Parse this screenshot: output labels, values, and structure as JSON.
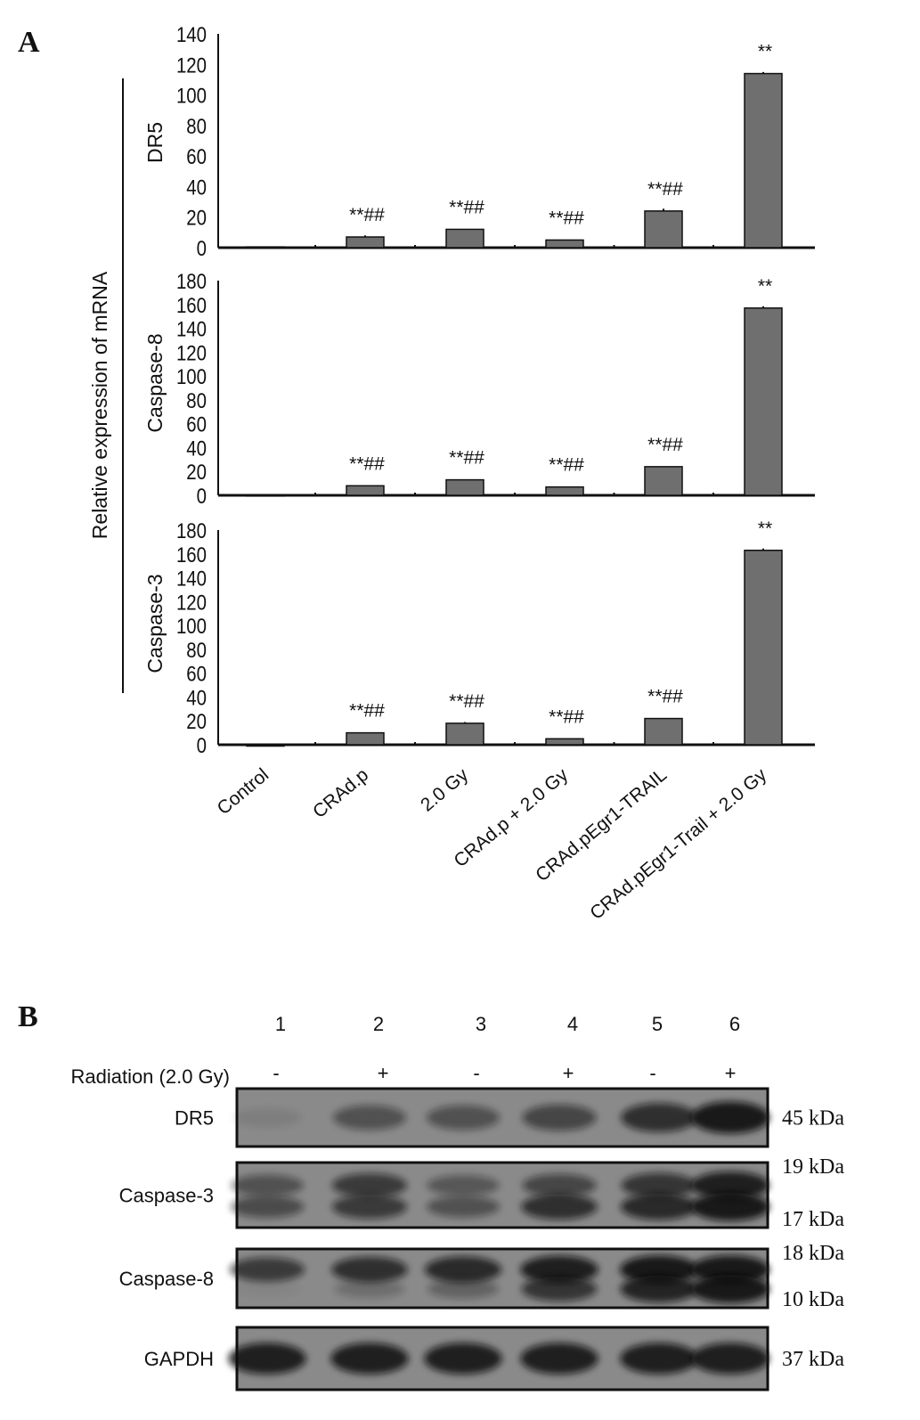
{
  "panel_a_label": "A",
  "panel_b_label": "B",
  "chart_data": [
    {
      "type": "bar",
      "title": "",
      "ylabel": "DR5",
      "shared_ylabel": "Relative expression of mRNA",
      "categories": [
        "Control",
        "CRAd.p",
        "2.0 Gy",
        "CRAd.p + 2.0 Gy",
        "CRAd.pEgr1-TRAIL",
        "CRAd.pEgr1-Trail + 2.0 Gy"
      ],
      "values": [
        0.5,
        7,
        12,
        5,
        24,
        114
      ],
      "errors": [
        0,
        1,
        0,
        0,
        1.5,
        1
      ],
      "annotations": [
        "",
        "**##",
        "**##",
        "**##",
        "**##",
        "**"
      ],
      "ylim": [
        0,
        140
      ],
      "yticks": [
        "0",
        "20",
        "40",
        "60",
        "80",
        "100",
        "120",
        "140"
      ]
    },
    {
      "type": "bar",
      "ylabel": "Caspase-8",
      "categories": [
        "Control",
        "CRAd.p",
        "2.0 Gy",
        "CRAd.p + 2.0 Gy",
        "CRAd.pEgr1-TRAIL",
        "CRAd.pEgr1-Trail + 2.0 Gy"
      ],
      "values": [
        0.5,
        8,
        13,
        7,
        24,
        157
      ],
      "errors": [
        0,
        0,
        0,
        0,
        0,
        1.5
      ],
      "annotations": [
        "",
        "**##",
        "**##",
        "**##",
        "**##",
        "**"
      ],
      "ylim": [
        0,
        180
      ],
      "yticks": [
        "0",
        "20",
        "40",
        "60",
        "80",
        "100",
        "120",
        "140",
        "160",
        "180"
      ]
    },
    {
      "type": "bar",
      "ylabel": "Caspase-3",
      "categories": [
        "Control",
        "CRAd.p",
        "2.0 Gy",
        "CRAd.p + 2.0 Gy",
        "CRAd.pEgr1-TRAIL",
        "CRAd.pEgr1-Trail + 2.0 Gy"
      ],
      "values": [
        0,
        10,
        18,
        5,
        22,
        163
      ],
      "errors": [
        0,
        0,
        1,
        0,
        0,
        1.5
      ],
      "annotations": [
        "",
        "**##",
        "**##",
        "**##",
        "**##",
        "**"
      ],
      "ylim": [
        0,
        180
      ],
      "yticks": [
        "0",
        "20",
        "40",
        "60",
        "80",
        "100",
        "120",
        "140",
        "160",
        "180"
      ]
    }
  ],
  "blot": {
    "lanes": [
      "1",
      "2",
      "3",
      "4",
      "5",
      "6"
    ],
    "radiation_label": "Radiation (2.0 Gy)",
    "radiation": [
      "-",
      "+",
      "-",
      "+",
      "-",
      "+"
    ],
    "rows": [
      {
        "name": "DR5",
        "kda": [
          "45 kDa"
        ],
        "bands": [
          [
            0.1,
            0.5,
            0.5,
            0.6,
            0.8,
            1.0
          ]
        ]
      },
      {
        "name": "Caspase-3",
        "kda": [
          "19 kDa",
          "17 kDa"
        ],
        "bands": [
          [
            0.5,
            0.7,
            0.45,
            0.6,
            0.75,
            0.95
          ],
          [
            0.55,
            0.7,
            0.5,
            0.8,
            0.85,
            1.0
          ]
        ]
      },
      {
        "name": "Caspase-8",
        "kda": [
          "18 kDa",
          "10 kDa"
        ],
        "bands": [
          [
            0.7,
            0.8,
            0.85,
            0.95,
            1.0,
            1.0
          ],
          [
            0.05,
            0.25,
            0.35,
            0.75,
            0.9,
            1.0
          ]
        ]
      },
      {
        "name": "GAPDH",
        "kda": [
          "37 kDa"
        ],
        "bands": [
          [
            0.95,
            0.95,
            0.95,
            0.95,
            0.95,
            0.95
          ]
        ]
      }
    ]
  }
}
